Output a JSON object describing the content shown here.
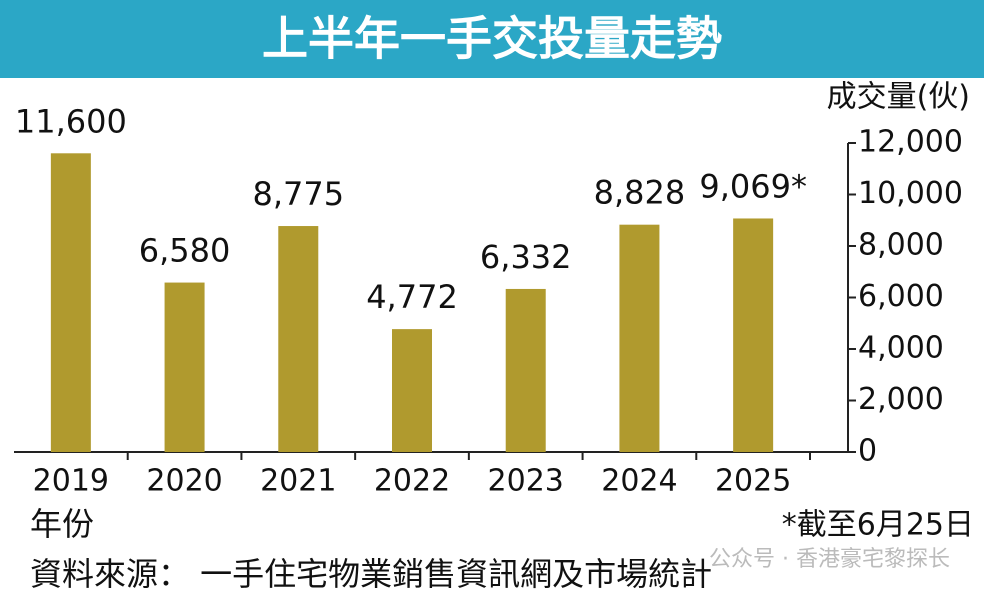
{
  "chart_data": {
    "type": "bar",
    "title": "上半年一手交投量走勢",
    "y_label": "成交量(伙)",
    "x_label": "年份",
    "categories": [
      "2019",
      "2020",
      "2021",
      "2022",
      "2023",
      "2024",
      "2025"
    ],
    "values": [
      11600,
      6580,
      8775,
      4772,
      6332,
      8828,
      9069
    ],
    "value_labels": [
      "11,600",
      "6,580",
      "8,775",
      "4,772",
      "6,332",
      "8,828",
      "9,069*"
    ],
    "color": "#b09a2e",
    "ylim": [
      0,
      12000
    ],
    "yticks": [
      0,
      {
        "value": 2000,
        "label": "2,000"
      },
      {
        "value": 4000,
        "label": "4,000"
      },
      {
        "value": 6000,
        "label": "6,000"
      },
      {
        "value": 8000,
        "label": "8,000"
      },
      {
        "value": 10000,
        "label": "10,000"
      },
      {
        "value": 12000,
        "label": "12,000"
      }
    ],
    "footnote": "*截至6月25日",
    "source": "資料來源： 一手住宅物業銷售資訊網及市場統計",
    "watermark": "公众号 · 香港豪宅黎探长"
  }
}
